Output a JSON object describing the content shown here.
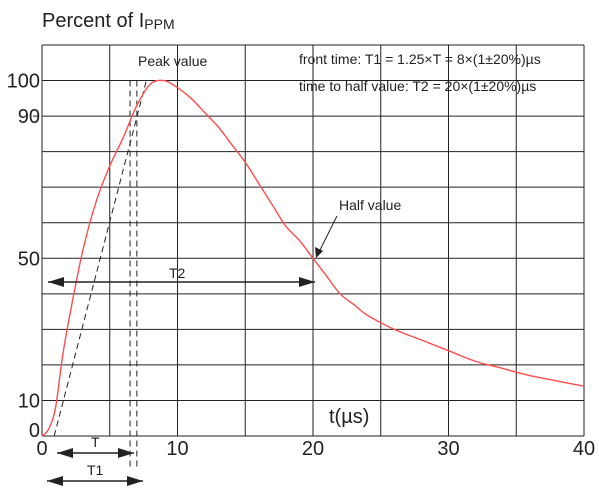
{
  "chart_data": {
    "type": "line",
    "title_prefix": "Percent of I",
    "title_subscript": "PPM",
    "xlabel": "t(µs)",
    "xlim": [
      0,
      40
    ],
    "ylim": [
      0,
      110
    ],
    "x_ticks": [
      0,
      10,
      20,
      30,
      40
    ],
    "y_ticks": [
      0,
      10,
      50,
      90,
      100
    ],
    "grid": true,
    "series": [
      {
        "color": "#ff4d4d",
        "x": [
          0,
          0.5,
          1.0,
          1.5,
          2,
          3,
          4,
          5,
          6,
          7,
          8,
          9,
          10,
          11,
          12,
          13,
          14,
          15,
          16,
          17,
          18,
          19,
          20,
          21,
          22,
          23,
          24,
          26,
          28,
          30,
          32,
          34,
          36,
          38,
          40
        ],
        "y": [
          0,
          2,
          8,
          22,
          33,
          52,
          66,
          76,
          84,
          93,
          99,
          100,
          98,
          95,
          91,
          87,
          82,
          77,
          71,
          65,
          59,
          55,
          50,
          45,
          40,
          37,
          34,
          30,
          27,
          24,
          21,
          19,
          17,
          15.5,
          14
        ]
      }
    ],
    "front_tangent": {
      "x": [
        0.9,
        7.7
      ],
      "y": [
        0,
        100
      ]
    },
    "annotations": {
      "peak": "Peak value",
      "half": "Half value",
      "front_time": "front time: T1 = 1.25×T = 8×(1±20%)µs",
      "half_time": "time to half value: T2 = 20×(1±20%)µs",
      "t2": "T2",
      "t": "T",
      "t1": "T1"
    },
    "markers": {
      "half_value_x": 20,
      "t_start": 1,
      "t_end": 6.5,
      "t1_start": 1,
      "t1_end": 7,
      "dash_x": [
        6.5,
        7
      ]
    }
  }
}
